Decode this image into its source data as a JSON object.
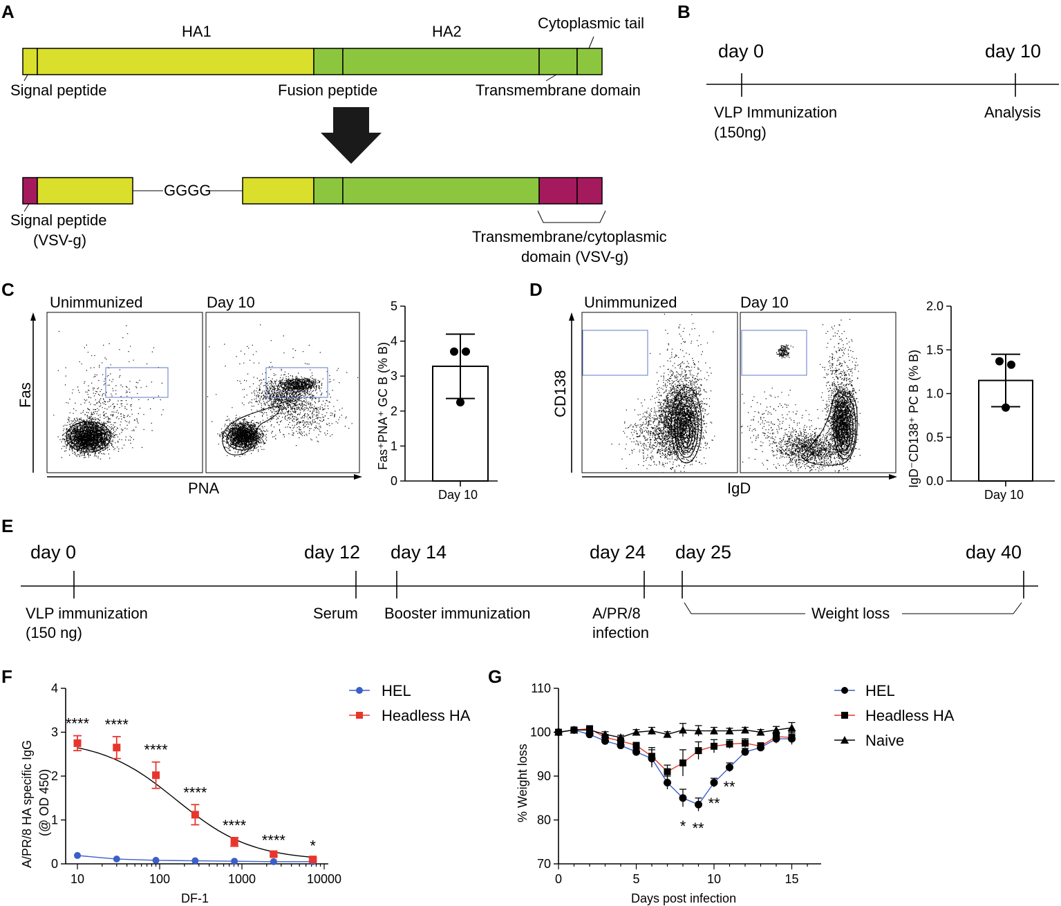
{
  "panels": {
    "A": "A",
    "B": "B",
    "C": "C",
    "D": "D",
    "E": "E",
    "F": "F",
    "G": "G"
  },
  "colors": {
    "signal": "#d9df2a",
    "ha1": "#d9df2a",
    "ha2": "#8cc63f",
    "vsvg": "#a51a5c",
    "hel": "#3a5fc8",
    "headless": "#e8352c",
    "naive": "#000000"
  },
  "panel_a": {
    "ha1": "HA1",
    "ha2": "HA2",
    "cyto_tail": "Cytoplasmic tail",
    "signal_peptide": "Signal peptide",
    "fusion_peptide": "Fusion peptide",
    "tm_domain": "Transmembrane domain",
    "linker": "GGGG",
    "signal_peptide_vsvg_1": "Signal peptide",
    "signal_peptide_vsvg_2": "(VSV-g)",
    "tm_cyto_1": "Transmembrane/cytoplasmic",
    "tm_cyto_2": "domain (VSV-g)"
  },
  "panel_b": {
    "day0": "day 0",
    "day10": "day 10",
    "vlp_1": "VLP Immunization",
    "vlp_2": "(150ng)",
    "analysis": "Analysis"
  },
  "panel_c": {
    "flow_titles": [
      "Unimmunized",
      "Day 10"
    ],
    "xlabel": "PNA",
    "ylabel": "Fas",
    "chart_data": {
      "type": "bar",
      "title": "",
      "categories": [
        "Day 10"
      ],
      "values": [
        3.28
      ],
      "error": [
        0.92
      ],
      "points": [
        3.7,
        3.7,
        2.25
      ],
      "ylabel": "Fas⁺PNA⁺ GC B (% B)",
      "ylim": [
        0,
        5
      ],
      "yticks": [
        "0",
        "1",
        "2",
        "3",
        "4",
        "5"
      ]
    }
  },
  "panel_d": {
    "flow_titles": [
      "Unimmunized",
      "Day 10"
    ],
    "xlabel": "IgD",
    "ylabel": "CD138",
    "chart_data": {
      "type": "bar",
      "title": "",
      "categories": [
        "Day 10"
      ],
      "values": [
        1.15
      ],
      "error": [
        0.3
      ],
      "points": [
        1.37,
        1.33,
        0.84
      ],
      "ylabel": "IgD⁻CD138⁺ PC B (% B)",
      "ylim": [
        0,
        2
      ],
      "yticks": [
        "0.0",
        "0.5",
        "1.0",
        "1.5",
        "2.0"
      ]
    }
  },
  "panel_e": {
    "days": [
      "day 0",
      "day 12",
      "day 14",
      "day 24",
      "day 25",
      "day 40"
    ],
    "vlp_1": "VLP immunization",
    "vlp_2": "(150 ng)",
    "serum": "Serum",
    "booster": "Booster immunization",
    "apr8_1": "A/PR/8",
    "apr8_2": "infection",
    "weight_loss": "Weight loss"
  },
  "panel_f": {
    "chart_data": {
      "type": "line",
      "xscale": "log",
      "x": [
        10,
        30,
        90,
        270,
        810,
        2430,
        7290
      ],
      "series": [
        {
          "name": "HEL",
          "values": [
            0.19,
            0.11,
            0.08,
            0.07,
            0.06,
            0.05,
            0.05
          ]
        },
        {
          "name": "Headless HA",
          "values": [
            2.75,
            2.65,
            2.02,
            1.12,
            0.5,
            0.22,
            0.1
          ],
          "error": [
            0.17,
            0.25,
            0.3,
            0.23,
            0.1,
            0.04,
            0.03
          ]
        }
      ],
      "significance": [
        "****",
        "****",
        "****",
        "****",
        "****",
        "****",
        "*"
      ],
      "xlabel": "DF-1",
      "ylabel_1": "A/PR/8 HA specific IgG",
      "ylabel_2": "(@ OD 450)",
      "ylim": [
        0,
        4
      ],
      "yticks": [
        "0",
        "1",
        "2",
        "3",
        "4"
      ],
      "xticks": [
        "10",
        "100",
        "1000",
        "10000"
      ]
    }
  },
  "panel_g": {
    "chart_data": {
      "type": "line",
      "x": [
        0,
        1,
        2,
        3,
        4,
        5,
        6,
        7,
        8,
        9,
        10,
        11,
        12,
        13,
        14,
        15
      ],
      "series": [
        {
          "name": "HEL",
          "values": [
            100,
            100.5,
            99.5,
            98,
            97,
            95.5,
            94,
            88.5,
            85,
            83.5,
            88.5,
            92,
            95.5,
            96.5,
            98.5,
            98.5
          ]
        },
        {
          "name": "Headless HA",
          "values": [
            100,
            100.5,
            100.8,
            98.8,
            98,
            97,
            94.5,
            91,
            93,
            95.8,
            96.8,
            97.3,
            97.5,
            96.8,
            99,
            98.8
          ]
        },
        {
          "name": "Naive",
          "values": [
            100,
            100.5,
            100.5,
            99.5,
            98.8,
            100,
            100.3,
            99.5,
            100.5,
            100.3,
            100.3,
            100.3,
            100.5,
            100,
            100.5,
            101
          ]
        }
      ],
      "significance": {
        "day8": "*",
        "day9_1": "**",
        "day9_2": "**",
        "day10": "**"
      },
      "xlabel": "Days post infection",
      "ylabel": "% Weight loss",
      "ylim": [
        70,
        110
      ],
      "yticks": [
        "70",
        "80",
        "90",
        "100",
        "110"
      ],
      "xticks": [
        "0",
        "5",
        "10",
        "15"
      ]
    }
  }
}
